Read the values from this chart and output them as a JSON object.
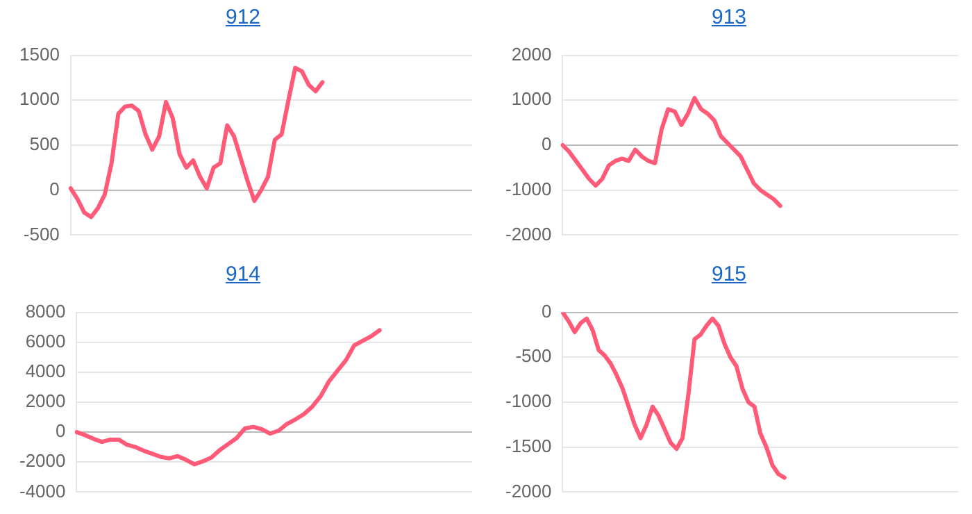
{
  "chart_data": [
    {
      "type": "line",
      "title": "912",
      "categories": [
        null,
        null,
        null,
        null,
        null,
        null,
        null,
        null,
        null,
        null,
        null,
        null,
        null,
        null,
        null,
        null,
        null,
        null,
        null,
        null,
        null,
        null,
        null,
        null,
        null,
        null,
        null,
        null,
        null,
        null,
        null,
        null,
        null,
        null,
        null,
        null,
        null,
        null,
        null,
        null,
        null,
        null,
        null,
        null,
        null,
        null,
        null,
        null,
        null,
        null,
        null,
        null,
        null,
        null,
        null,
        null,
        null,
        null,
        null,
        null
      ],
      "series": [
        {
          "color": "#ff5a78",
          "values": [
            20,
            -100,
            -250,
            -300,
            -200,
            -50,
            300,
            850,
            930,
            940,
            880,
            620,
            450,
            600,
            980,
            800,
            400,
            250,
            330,
            150,
            20,
            250,
            300,
            720,
            600,
            350,
            100,
            -120,
            0,
            150,
            560,
            620,
            1000,
            1360,
            1320,
            1170,
            1100,
            1200,
            null,
            null,
            null,
            null,
            null,
            null,
            null,
            null,
            null,
            null,
            null,
            null,
            null,
            null,
            null,
            null,
            null,
            null,
            null,
            null,
            null,
            null
          ]
        }
      ],
      "ylim": [
        -500,
        1500
      ],
      "yticks": [
        -500,
        0,
        500,
        1000,
        1500
      ],
      "grid": "y",
      "legend": false,
      "tick_labels": "y",
      "marker": "none"
    },
    {
      "type": "line",
      "title": "913",
      "categories": [
        null,
        null,
        null,
        null,
        null,
        null,
        null,
        null,
        null,
        null,
        null,
        null,
        null,
        null,
        null,
        null,
        null,
        null,
        null,
        null,
        null,
        null,
        null,
        null,
        null,
        null,
        null,
        null,
        null,
        null,
        null,
        null,
        null,
        null,
        null,
        null,
        null,
        null,
        null,
        null,
        null,
        null,
        null,
        null,
        null,
        null,
        null,
        null,
        null,
        null,
        null,
        null,
        null,
        null,
        null,
        null,
        null,
        null,
        null,
        null,
        null
      ],
      "series": [
        {
          "color": "#ff5a78",
          "values": [
            0,
            -150,
            -350,
            -550,
            -750,
            -900,
            -750,
            -450,
            -350,
            -300,
            -350,
            -100,
            -250,
            -350,
            -400,
            350,
            800,
            750,
            450,
            700,
            1050,
            800,
            700,
            550,
            200,
            50,
            -100,
            -250,
            -550,
            -850,
            -1000,
            -1100,
            -1200,
            -1350,
            null,
            null,
            null,
            null,
            null,
            null,
            null,
            null,
            null,
            null,
            null,
            null,
            null,
            null,
            null,
            null,
            null,
            null,
            null,
            null,
            null,
            null,
            null,
            null,
            null,
            null,
            null
          ]
        }
      ],
      "ylim": [
        -2000,
        2000
      ],
      "yticks": [
        -2000,
        -1000,
        0,
        1000,
        2000
      ],
      "grid": "y",
      "legend": false,
      "tick_labels": "y",
      "marker": "none"
    },
    {
      "type": "line",
      "title": "914",
      "categories": [
        null,
        null,
        null,
        null,
        null,
        null,
        null,
        null,
        null,
        null,
        null,
        null,
        null,
        null,
        null,
        null,
        null,
        null,
        null,
        null,
        null,
        null,
        null,
        null,
        null,
        null,
        null,
        null,
        null,
        null,
        null,
        null,
        null,
        null,
        null,
        null,
        null,
        null,
        null,
        null,
        null,
        null,
        null,
        null,
        null,
        null,
        null,
        null
      ],
      "series": [
        {
          "color": "#ff5a78",
          "values": [
            0,
            -200,
            -450,
            -650,
            -500,
            -500,
            -850,
            -1000,
            -1250,
            -1450,
            -1650,
            -1750,
            -1600,
            -1850,
            -2150,
            -1950,
            -1700,
            -1200,
            -800,
            -400,
            250,
            350,
            200,
            -100,
            100,
            550,
            850,
            1200,
            1700,
            2400,
            3400,
            4100,
            4800,
            5800,
            6100,
            6400,
            6800,
            null,
            null,
            null,
            null,
            null,
            null,
            null,
            null,
            null,
            null,
            null
          ]
        }
      ],
      "ylim": [
        -4000,
        8000
      ],
      "yticks": [
        -4000,
        -2000,
        0,
        2000,
        4000,
        6000,
        8000
      ],
      "grid": "y",
      "legend": false,
      "tick_labels": "y",
      "marker": "none"
    },
    {
      "type": "line",
      "title": "915",
      "categories": [
        null,
        null,
        null,
        null,
        null,
        null,
        null,
        null,
        null,
        null,
        null,
        null,
        null,
        null,
        null,
        null,
        null,
        null,
        null,
        null,
        null,
        null,
        null,
        null,
        null,
        null,
        null,
        null,
        null,
        null,
        null,
        null,
        null,
        null,
        null,
        null,
        null,
        null,
        null,
        null,
        null,
        null,
        null,
        null,
        null,
        null,
        null,
        null,
        null,
        null,
        null,
        null,
        null,
        null,
        null,
        null,
        null,
        null,
        null,
        null,
        null,
        null,
        null,
        null,
        null,
        null,
        null
      ],
      "series": [
        {
          "color": "#ff5a78",
          "values": [
            0,
            -100,
            -220,
            -120,
            -70,
            -200,
            -420,
            -480,
            -570,
            -700,
            -850,
            -1050,
            -1250,
            -1400,
            -1250,
            -1050,
            -1150,
            -1300,
            -1450,
            -1520,
            -1400,
            -900,
            -300,
            -250,
            -150,
            -70,
            -150,
            -350,
            -500,
            -600,
            -850,
            -1000,
            -1050,
            -1350,
            -1500,
            -1700,
            -1800,
            -1840,
            null,
            null,
            null,
            null,
            null,
            null,
            null,
            null,
            null,
            null,
            null,
            null,
            null,
            null,
            null,
            null,
            null,
            null,
            null,
            null,
            null,
            null,
            null,
            null,
            null,
            null,
            null,
            null,
            null
          ]
        }
      ],
      "ylim": [
        -2000,
        0
      ],
      "yticks": [
        -2000,
        -1500,
        -1000,
        -500,
        0
      ],
      "grid": "y",
      "legend": false,
      "tick_labels": "y",
      "marker": "none"
    }
  ]
}
